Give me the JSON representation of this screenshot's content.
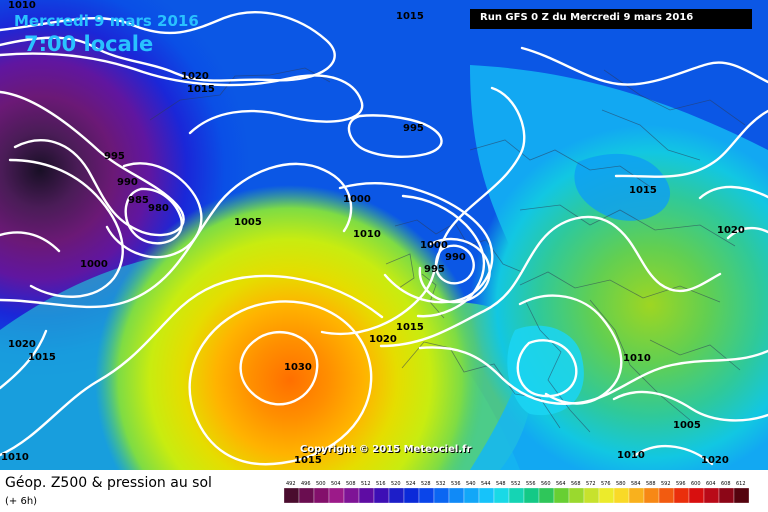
{
  "header": {
    "date": "Mercredi 9 mars 2016",
    "time": "7:00 locale",
    "run": "Run GFS 0 Z du Mercredi 9 mars 2016"
  },
  "footer": {
    "title": "Géop. Z500 & pression au sol",
    "subtitle": "(+ 6h)",
    "copyright": "Copyright © 2015 Meteociel.fr"
  },
  "isobar_labels": [
    "1010",
    "1015",
    "1020",
    "1015",
    "995",
    "990",
    "985",
    "980",
    "1000",
    "1005",
    "1000",
    "1010",
    "995",
    "990",
    "1000",
    "995",
    "1015",
    "1020",
    "1030",
    "1015",
    "1010",
    "1015",
    "1020",
    "1020",
    "1010",
    "1005",
    "1010",
    "1020",
    "1015"
  ],
  "legend_values": [
    "492",
    "496",
    "500",
    "504",
    "508",
    "512",
    "516",
    "520",
    "524",
    "528",
    "532",
    "536",
    "540",
    "544",
    "548",
    "552",
    "556",
    "560",
    "564",
    "568",
    "572",
    "576",
    "580",
    "584",
    "588",
    "592",
    "596",
    "600",
    "604",
    "608",
    "612"
  ],
  "legend_colors": [
    "#4a0c2e",
    "#6a0d50",
    "#83106b",
    "#9c1a89",
    "#7e1496",
    "#5e0ca3",
    "#3d0fb5",
    "#1d1ec8",
    "#0a2ad9",
    "#0a45ea",
    "#0b66f2",
    "#108af7",
    "#12a7f8",
    "#16c3fa",
    "#19d9e6",
    "#15d4b4",
    "#14c986",
    "#2fc65a",
    "#68cf33",
    "#9ad92e",
    "#c7e22d",
    "#eceb2b",
    "#f9d927",
    "#f9b11d",
    "#f78815",
    "#f25b10",
    "#ea2f0c",
    "#d80f0f",
    "#b90a18",
    "#8c0617",
    "#55030e"
  ],
  "legend_title_unit": ""
}
